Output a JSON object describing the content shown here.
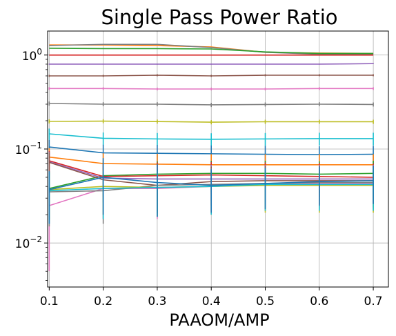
{
  "chart_data": {
    "type": "line",
    "title": "Single Pass Power Ratio",
    "xlabel": "PAAOM/AMP",
    "ylabel": "",
    "yscale": "log",
    "xlim": [
      0.097,
      0.728
    ],
    "ylim": [
      0.0034,
      1.8
    ],
    "grid": true,
    "x": [
      0.1,
      0.2,
      0.3,
      0.4,
      0.5,
      0.6,
      0.7
    ],
    "x_ticks": [
      "0.1",
      "0.2",
      "0.3",
      "0.4",
      "0.5",
      "0.6",
      "0.7"
    ],
    "y_ticks": [
      {
        "value": 0.01,
        "base": "10",
        "exp": "−2"
      },
      {
        "value": 0.1,
        "base": "10",
        "exp": "−1"
      },
      {
        "value": 1,
        "base": "10",
        "exp": "0"
      }
    ],
    "series": [
      {
        "color": "#ff7f0e",
        "values": [
          1.28,
          1.28,
          1.26,
          1.22,
          1.07,
          1.05,
          1.04
        ],
        "err": [
          0,
          0,
          0,
          0,
          0,
          0,
          0
        ]
      },
      {
        "color": "#7f7f7f",
        "values": [
          1.26,
          1.3,
          1.3,
          1.2,
          1.07,
          1.02,
          1.02
        ],
        "err": [
          0,
          0,
          0,
          0,
          0,
          0,
          0
        ]
      },
      {
        "color": "#2ca02c",
        "values": [
          1.18,
          1.17,
          1.17,
          1.16,
          1.08,
          1.04,
          1.04
        ],
        "err": [
          0,
          0,
          0,
          0,
          0,
          0,
          0
        ]
      },
      {
        "color": "#d62728",
        "values": [
          1.0,
          1.0,
          1.0,
          1.0,
          1.0,
          1.0,
          1.0
        ],
        "err": [
          0,
          0,
          0,
          0,
          0,
          0,
          0
        ]
      },
      {
        "color": "#9467bd",
        "values": [
          0.8,
          0.8,
          0.8,
          0.8,
          0.8,
          0.8,
          0.81
        ],
        "err": [
          0.01,
          0.01,
          0.01,
          0.01,
          0.01,
          0.01,
          0.01
        ]
      },
      {
        "color": "#8c564b",
        "values": [
          0.6,
          0.6,
          0.61,
          0.6,
          0.61,
          0.61,
          0.61
        ],
        "err": [
          0.015,
          0.015,
          0.015,
          0.015,
          0.015,
          0.015,
          0.015
        ]
      },
      {
        "color": "#e377c2",
        "values": [
          0.44,
          0.44,
          0.435,
          0.435,
          0.435,
          0.44,
          0.44
        ],
        "err": [
          0.015,
          0.015,
          0.015,
          0.015,
          0.015,
          0.015,
          0.015
        ]
      },
      {
        "color": "#7f7f7f",
        "values": [
          0.305,
          0.3,
          0.3,
          0.295,
          0.298,
          0.3,
          0.298
        ],
        "err": [
          0.015,
          0.015,
          0.015,
          0.015,
          0.015,
          0.015,
          0.015
        ]
      },
      {
        "color": "#bcbd22",
        "values": [
          0.197,
          0.198,
          0.196,
          0.193,
          0.195,
          0.195,
          0.195
        ],
        "err": [
          0.01,
          0.01,
          0.01,
          0.01,
          0.01,
          0.01,
          0.01
        ]
      },
      {
        "color": "#17becf",
        "values": [
          0.145,
          0.13,
          0.128,
          0.127,
          0.128,
          0.129,
          0.129
        ],
        "err": [
          0.02,
          0.02,
          0.02,
          0.02,
          0.02,
          0.02,
          0.02
        ]
      },
      {
        "color": "#1f77b4",
        "values": [
          0.105,
          0.091,
          0.09,
          0.089,
          0.088,
          0.087,
          0.088
        ],
        "err": [
          0.02,
          0.02,
          0.02,
          0.02,
          0.02,
          0.02,
          0.02
        ]
      },
      {
        "color": "#ff7f0e",
        "values": [
          0.082,
          0.07,
          0.069,
          0.068,
          0.068,
          0.068,
          0.068
        ],
        "err": [
          0.02,
          0.02,
          0.02,
          0.02,
          0.02,
          0.02,
          0.02
        ]
      },
      {
        "color": "#2ca02c",
        "values": [
          0.038,
          0.052,
          0.054,
          0.055,
          0.055,
          0.054,
          0.055
        ],
        "err": [
          0.02,
          0.02,
          0.02,
          0.02,
          0.02,
          0.02,
          0.02
        ]
      },
      {
        "color": "#d62728",
        "values": [
          0.075,
          0.051,
          0.052,
          0.053,
          0.052,
          0.051,
          0.05
        ],
        "err": [
          0.02,
          0.02,
          0.02,
          0.02,
          0.02,
          0.02,
          0.02
        ]
      },
      {
        "color": "#9467bd",
        "values": [
          0.073,
          0.049,
          0.048,
          0.048,
          0.048,
          0.048,
          0.048
        ],
        "err": [
          0.02,
          0.02,
          0.02,
          0.02,
          0.02,
          0.02,
          0.02
        ]
      },
      {
        "color": "#8c564b",
        "values": [
          0.072,
          0.047,
          0.041,
          0.045,
          0.046,
          0.046,
          0.046
        ],
        "err": [
          0.02,
          0.02,
          0.02,
          0.02,
          0.02,
          0.02,
          0.02
        ]
      },
      {
        "color": "#e377c2",
        "values": [
          0.025,
          0.038,
          0.038,
          0.04,
          0.042,
          0.043,
          0.043
        ],
        "err": [
          0.02,
          0.02,
          0.02,
          0.02,
          0.02,
          0.02,
          0.02
        ]
      },
      {
        "color": "#7f7f7f",
        "values": [
          0.035,
          0.036,
          0.041,
          0.042,
          0.043,
          0.044,
          0.044
        ],
        "err": [
          0.02,
          0.02,
          0.02,
          0.02,
          0.02,
          0.02,
          0.02
        ]
      },
      {
        "color": "#bcbd22",
        "values": [
          0.037,
          0.04,
          0.039,
          0.04,
          0.041,
          0.041,
          0.041
        ],
        "err": [
          0.02,
          0.02,
          0.02,
          0.02,
          0.02,
          0.02,
          0.02
        ]
      },
      {
        "color": "#17becf",
        "values": [
          0.036,
          0.038,
          0.039,
          0.04,
          0.042,
          0.042,
          0.042
        ],
        "err": [
          0.02,
          0.02,
          0.02,
          0.02,
          0.02,
          0.02,
          0.02
        ]
      },
      {
        "color": "#1f77b4",
        "values": [
          0.037,
          0.05,
          0.044,
          0.041,
          0.043,
          0.045,
          0.046
        ],
        "err": [
          0.021,
          0.03,
          0.025,
          0.02,
          0.02,
          0.02,
          0.02
        ]
      }
    ]
  }
}
